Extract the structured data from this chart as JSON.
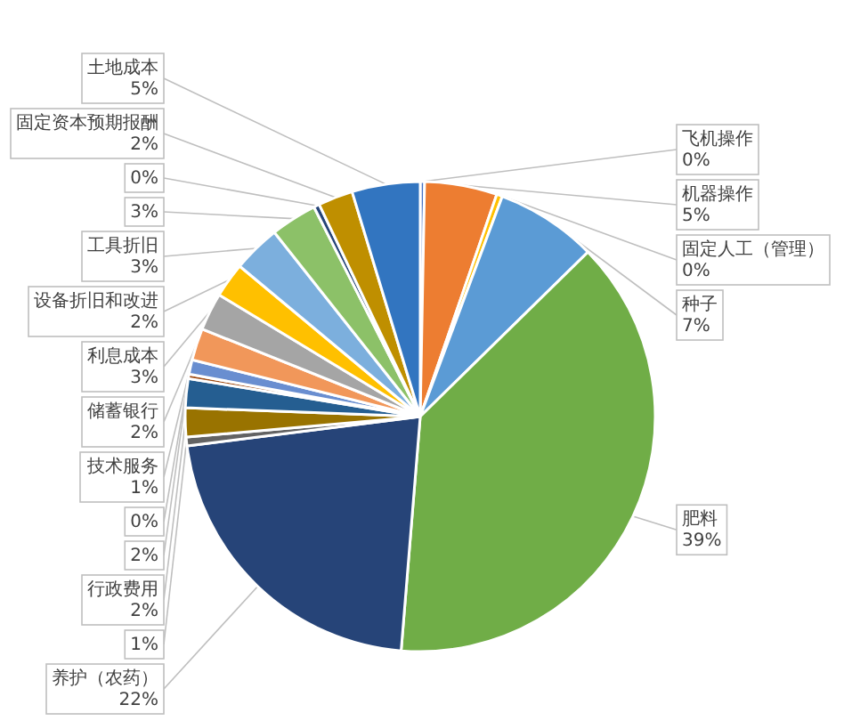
{
  "chart_data": {
    "type": "pie",
    "categories": [
      "飞机操作",
      "机器操作",
      "固定人工（管理）",
      "种子",
      "肥料",
      "养护（农药）",
      null,
      "行政费用",
      null,
      null,
      "技术服务",
      "储蓄银行",
      "利息成本",
      "设备折旧和改进",
      "工具折旧",
      null,
      null,
      "固定资本预期报酬",
      "土地成本"
    ],
    "values": [
      0.3,
      5.0,
      0.4,
      7,
      38.8,
      21.8,
      0.6,
      2,
      2,
      0.3,
      1,
      2.2,
      2.6,
      2.4,
      3.3,
      3.2,
      0.4,
      2.4,
      4.7
    ],
    "value_labels": [
      "0%",
      "5%",
      "0%",
      "7%",
      "39%",
      "22%",
      "1%",
      "2%",
      "2%",
      "0%",
      "1%",
      "2%",
      "3%",
      "2%",
      "3%",
      "3%",
      "0%",
      "2%",
      "5%"
    ],
    "colors": [
      "#4472c4",
      "#ed7d31",
      "#ffc000",
      "#5b9bd5",
      "#70ad47",
      "#264478",
      "#636363",
      "#997300",
      "#255e91",
      "#9e480e",
      "#698ed0",
      "#f1975a",
      "#a5a5a5",
      "#ffc000",
      "#7cafdd",
      "#8cc168",
      "#264478",
      "#bf8f00",
      "#3275c0"
    ]
  }
}
